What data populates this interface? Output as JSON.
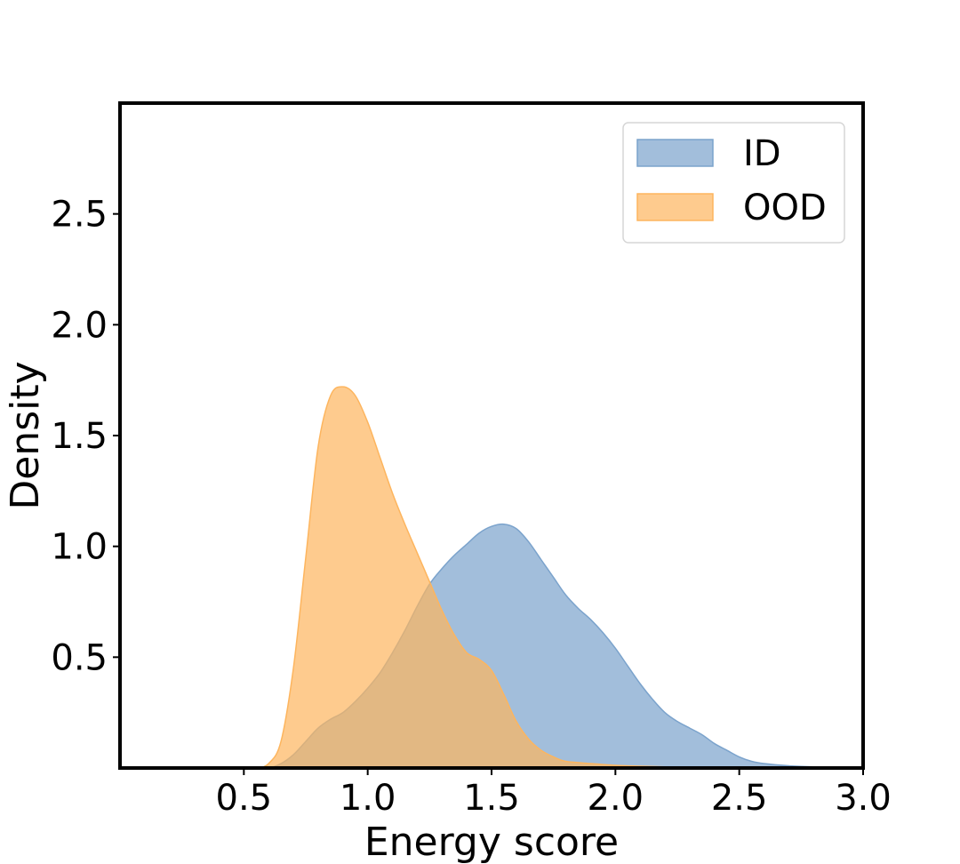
{
  "chart_data": {
    "type": "area",
    "title": "",
    "xlabel": "Energy score",
    "ylabel": "Density",
    "xlim": [
      0.0,
      3.0
    ],
    "ylim": [
      0.0,
      3.0
    ],
    "x_ticks": [
      "0.5",
      "1.0",
      "1.5",
      "2.0",
      "2.5",
      "3.0"
    ],
    "y_ticks": [
      "0.5",
      "1.0",
      "1.5",
      "2.0",
      "2.5"
    ],
    "grid": false,
    "legend_position": "top-right",
    "series": [
      {
        "name": "ID",
        "color": "#7ba3cc",
        "x": [
          0.55,
          0.6,
          0.65,
          0.7,
          0.75,
          0.8,
          0.85,
          0.9,
          0.95,
          1.0,
          1.05,
          1.1,
          1.15,
          1.2,
          1.25,
          1.3,
          1.35,
          1.4,
          1.45,
          1.5,
          1.55,
          1.6,
          1.65,
          1.7,
          1.75,
          1.8,
          1.85,
          1.9,
          1.95,
          2.0,
          2.05,
          2.1,
          2.15,
          2.2,
          2.25,
          2.3,
          2.35,
          2.4,
          2.45,
          2.5,
          2.55,
          2.6,
          2.7,
          2.8,
          2.9,
          3.0
        ],
        "y": [
          0.0,
          0.0,
          0.02,
          0.06,
          0.12,
          0.18,
          0.22,
          0.25,
          0.3,
          0.36,
          0.43,
          0.52,
          0.62,
          0.73,
          0.83,
          0.9,
          0.96,
          1.01,
          1.06,
          1.09,
          1.1,
          1.08,
          1.02,
          0.94,
          0.86,
          0.78,
          0.72,
          0.67,
          0.61,
          0.54,
          0.46,
          0.38,
          0.31,
          0.25,
          0.21,
          0.18,
          0.15,
          0.11,
          0.08,
          0.05,
          0.03,
          0.02,
          0.01,
          0.005,
          0.002,
          0.0
        ]
      },
      {
        "name": "OOD",
        "color": "#fdb55e",
        "x": [
          0.5,
          0.55,
          0.6,
          0.65,
          0.7,
          0.75,
          0.8,
          0.85,
          0.9,
          0.95,
          1.0,
          1.05,
          1.1,
          1.15,
          1.2,
          1.25,
          1.3,
          1.35,
          1.4,
          1.45,
          1.5,
          1.55,
          1.6,
          1.65,
          1.7,
          1.75,
          1.8,
          1.9,
          2.0,
          2.1,
          2.2,
          2.3,
          2.4,
          2.5,
          2.6
        ],
        "y": [
          0.0,
          0.0,
          0.02,
          0.12,
          0.45,
          0.95,
          1.45,
          1.68,
          1.72,
          1.68,
          1.56,
          1.4,
          1.24,
          1.1,
          0.97,
          0.84,
          0.71,
          0.6,
          0.52,
          0.49,
          0.44,
          0.33,
          0.21,
          0.13,
          0.08,
          0.05,
          0.03,
          0.02,
          0.012,
          0.008,
          0.005,
          0.003,
          0.002,
          0.001,
          0.0
        ]
      }
    ]
  }
}
